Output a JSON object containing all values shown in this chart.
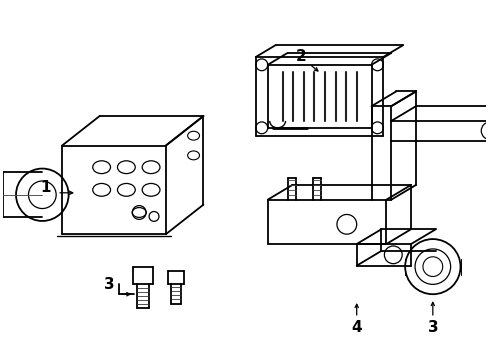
{
  "background_color": "#ffffff",
  "line_color": "#000000",
  "line_width": 1.3,
  "fig_width": 4.89,
  "fig_height": 3.6,
  "dpi": 100
}
